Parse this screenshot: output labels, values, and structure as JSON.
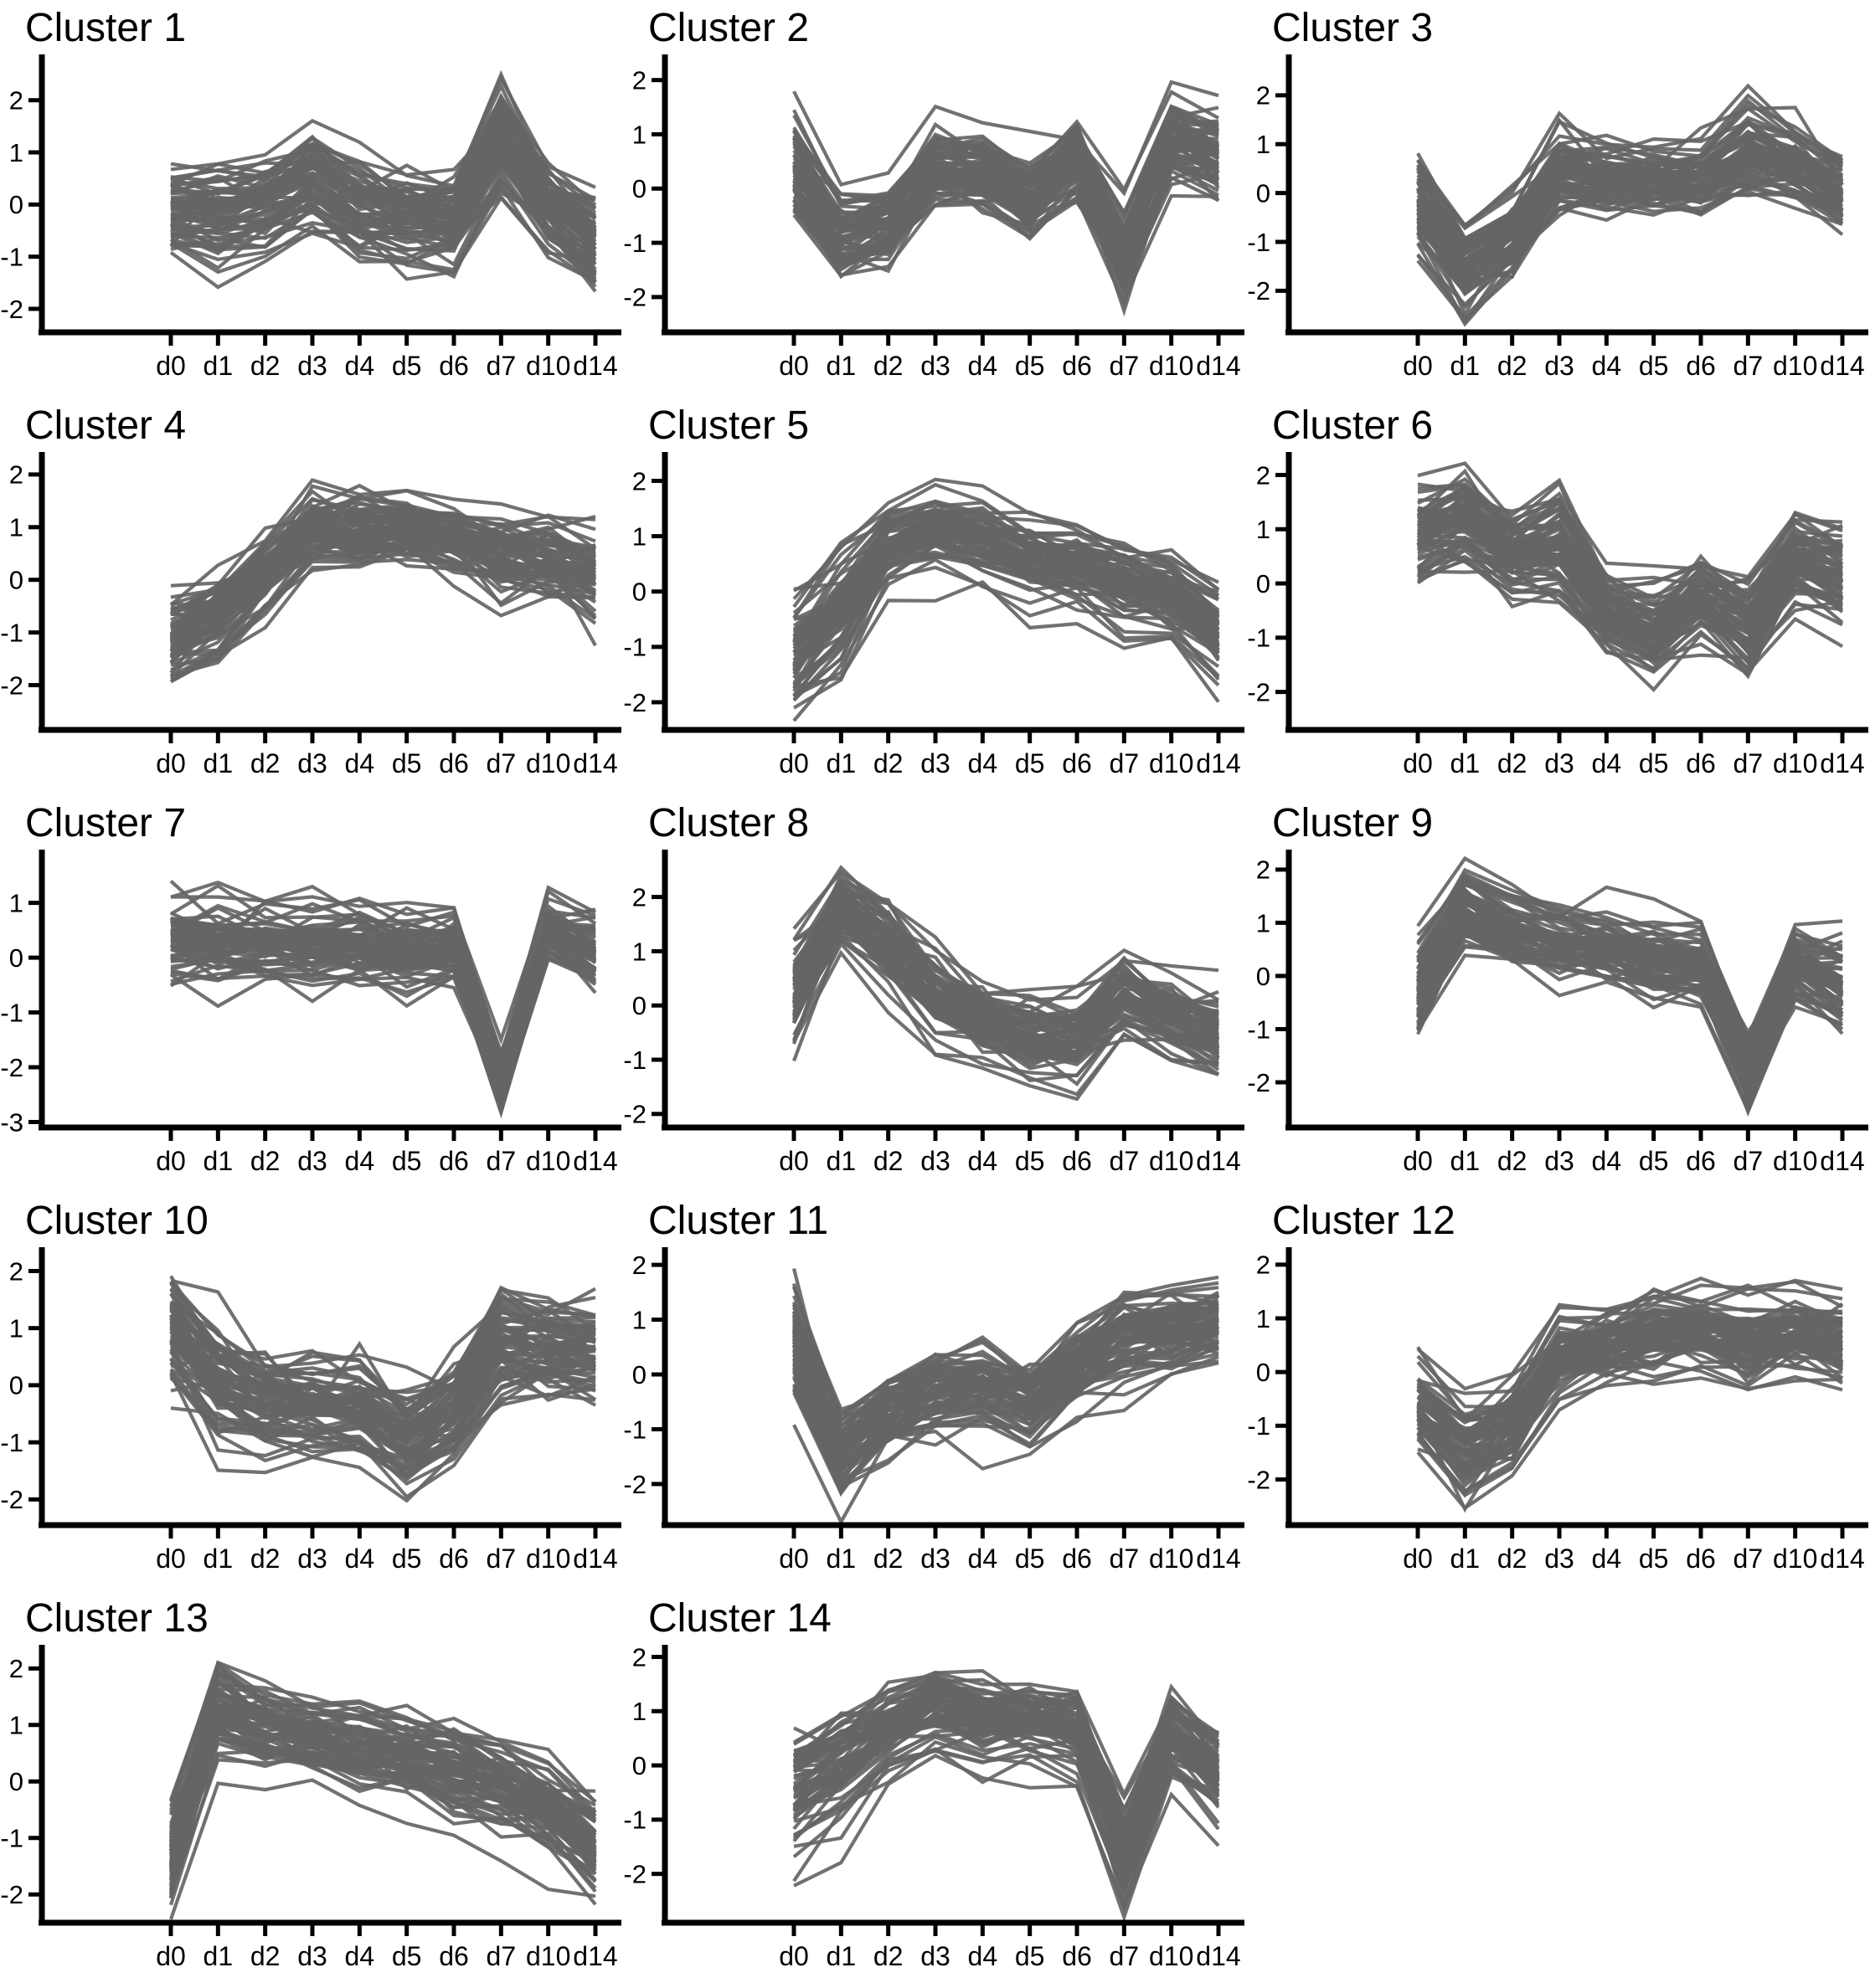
{
  "page": {
    "background": "#ffffff"
  },
  "chart_data": {
    "type": "line",
    "subtype": "ensemble-cluster-profiles",
    "categories": [
      "d0",
      "d1",
      "d2",
      "d3",
      "d4",
      "d5",
      "d6",
      "d7",
      "d10",
      "d14"
    ],
    "x_axis_label": "",
    "y_axis_label": "",
    "legend": "none",
    "grid": "off",
    "line_color": "#656565",
    "axis_color": "#000000",
    "ensemble_size": 70,
    "clusters": [
      {
        "title": "Cluster 1",
        "ylim": [
          -2.45,
          2.75
        ],
        "yticks": [
          2,
          1,
          0,
          -1,
          -2
        ],
        "mean": [
          -0.1,
          -0.15,
          0.0,
          0.5,
          -0.1,
          -0.2,
          -0.3,
          1.3,
          0.0,
          -0.7
        ],
        "spread": [
          0.6,
          0.6,
          0.55,
          0.7,
          0.6,
          0.6,
          0.55,
          0.75,
          0.5,
          0.65
        ]
      },
      {
        "title": "Cluster 2",
        "ylim": [
          -2.65,
          2.35
        ],
        "yticks": [
          2,
          1,
          0,
          -1,
          -2
        ],
        "mean": [
          0.3,
          -1.0,
          -0.75,
          0.3,
          0.3,
          -0.2,
          0.5,
          -1.3,
          0.9,
          0.6
        ],
        "spread": [
          0.8,
          0.7,
          0.6,
          0.6,
          0.55,
          0.6,
          0.6,
          0.7,
          0.6,
          0.6
        ]
      },
      {
        "title": "Cluster 3",
        "ylim": [
          -2.85,
          2.7
        ],
        "yticks": [
          2,
          1,
          0,
          -1,
          -2
        ],
        "mean": [
          -0.2,
          -1.5,
          -0.8,
          0.5,
          0.3,
          0.3,
          0.3,
          0.9,
          0.6,
          0.1
        ],
        "spread": [
          0.75,
          0.7,
          0.6,
          0.6,
          0.55,
          0.5,
          0.5,
          0.8,
          0.55,
          0.6
        ]
      },
      {
        "title": "Cluster 4",
        "ylim": [
          -2.85,
          2.3
        ],
        "yticks": [
          2,
          1,
          0,
          -1,
          -2
        ],
        "mean": [
          -1.2,
          -0.7,
          0.1,
          0.9,
          0.9,
          1.0,
          0.8,
          0.4,
          0.4,
          0.1
        ],
        "spread": [
          0.75,
          0.65,
          0.6,
          0.55,
          0.5,
          0.45,
          0.5,
          0.65,
          0.55,
          0.65
        ]
      },
      {
        "title": "Cluster 5",
        "ylim": [
          -2.5,
          2.4
        ],
        "yticks": [
          2,
          1,
          0,
          -1,
          -2
        ],
        "mean": [
          -1.1,
          -0.2,
          0.9,
          1.2,
          1.0,
          0.6,
          0.5,
          0.2,
          0.0,
          -0.7
        ],
        "spread": [
          0.75,
          0.75,
          0.5,
          0.5,
          0.5,
          0.55,
          0.5,
          0.6,
          0.55,
          0.6
        ]
      },
      {
        "title": "Cluster 6",
        "ylim": [
          -2.7,
          2.3
        ],
        "yticks": [
          2,
          1,
          0,
          -1,
          -2
        ],
        "mean": [
          0.9,
          1.1,
          0.5,
          0.7,
          -0.5,
          -1.0,
          -0.3,
          -0.9,
          0.4,
          0.1
        ],
        "spread": [
          0.6,
          0.6,
          0.55,
          0.7,
          0.5,
          0.6,
          0.5,
          0.7,
          0.6,
          0.6
        ]
      },
      {
        "title": "Cluster 7",
        "ylim": [
          -3.1,
          1.85
        ],
        "yticks": [
          1,
          0,
          -1,
          -2,
          -3
        ],
        "mean": [
          0.4,
          0.4,
          0.35,
          0.3,
          0.3,
          0.2,
          0.3,
          -2.2,
          0.6,
          0.2
        ],
        "spread": [
          0.5,
          0.55,
          0.5,
          0.5,
          0.5,
          0.5,
          0.45,
          0.4,
          0.4,
          0.55
        ]
      },
      {
        "title": "Cluster 8",
        "ylim": [
          -2.25,
          2.75
        ],
        "yticks": [
          2,
          1,
          0,
          -1,
          -2
        ],
        "mean": [
          0.2,
          1.8,
          1.1,
          0.2,
          -0.3,
          -0.6,
          -0.6,
          0.2,
          -0.2,
          -0.5
        ],
        "spread": [
          0.7,
          0.5,
          0.55,
          0.6,
          0.5,
          0.55,
          0.6,
          0.6,
          0.55,
          0.6
        ]
      },
      {
        "title": "Cluster 9",
        "ylim": [
          -2.85,
          2.25
        ],
        "yticks": [
          2,
          1,
          0,
          -1,
          -2
        ],
        "mean": [
          -0.3,
          1.3,
          0.9,
          0.6,
          0.5,
          0.3,
          0.2,
          -1.8,
          0.2,
          -0.2
        ],
        "spread": [
          0.65,
          0.5,
          0.45,
          0.5,
          0.45,
          0.5,
          0.45,
          0.5,
          0.45,
          0.6
        ]
      },
      {
        "title": "Cluster 10",
        "ylim": [
          -2.45,
          2.3
        ],
        "yticks": [
          2,
          1,
          0,
          -1,
          -2
        ],
        "mean": [
          1.0,
          0.0,
          -0.3,
          -0.4,
          -0.5,
          -1.0,
          -0.5,
          0.7,
          0.6,
          0.6
        ],
        "spread": [
          0.7,
          0.7,
          0.6,
          0.6,
          0.6,
          0.6,
          0.55,
          0.65,
          0.6,
          0.55
        ]
      },
      {
        "title": "Cluster 11",
        "ylim": [
          -2.75,
          2.2
        ],
        "yticks": [
          2,
          1,
          0,
          -1,
          -2
        ],
        "mean": [
          0.6,
          -1.5,
          -0.7,
          -0.3,
          -0.2,
          -0.5,
          0.1,
          0.7,
          0.8,
          0.9
        ],
        "spread": [
          0.8,
          0.6,
          0.55,
          0.55,
          0.55,
          0.55,
          0.55,
          0.6,
          0.55,
          0.5
        ]
      },
      {
        "title": "Cluster 12",
        "ylim": [
          -2.85,
          2.2
        ],
        "yticks": [
          2,
          1,
          0,
          -1,
          -2
        ],
        "mean": [
          -0.6,
          -1.4,
          -1.0,
          0.3,
          0.5,
          0.7,
          0.8,
          0.6,
          0.7,
          0.5
        ],
        "spread": [
          0.6,
          0.65,
          0.6,
          0.55,
          0.5,
          0.55,
          0.55,
          0.6,
          0.55,
          0.6
        ]
      },
      {
        "title": "Cluster 13",
        "ylim": [
          -2.5,
          2.3
        ],
        "yticks": [
          2,
          1,
          0,
          -1,
          -2
        ],
        "mean": [
          -1.3,
          1.3,
          1.0,
          0.8,
          0.6,
          0.5,
          0.2,
          0.0,
          -0.4,
          -1.1
        ],
        "spread": [
          0.6,
          0.5,
          0.45,
          0.45,
          0.5,
          0.5,
          0.55,
          0.55,
          0.5,
          0.55
        ]
      },
      {
        "title": "Cluster 14",
        "ylim": [
          -2.9,
          2.1
        ],
        "yticks": [
          2,
          1,
          0,
          -1,
          -2
        ],
        "mean": [
          -0.5,
          0.0,
          0.6,
          1.0,
          0.8,
          0.8,
          0.6,
          -1.7,
          0.5,
          -0.2
        ],
        "spread": [
          0.75,
          0.7,
          0.55,
          0.5,
          0.5,
          0.45,
          0.55,
          0.6,
          0.5,
          0.6
        ]
      }
    ]
  }
}
